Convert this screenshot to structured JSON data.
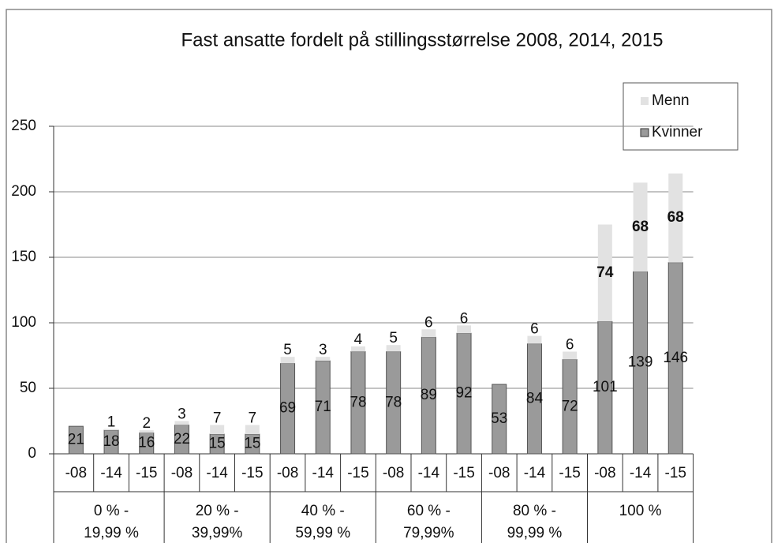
{
  "chart_data": {
    "type": "stacked_bar",
    "title": "Fast ansatte fordelt på stillingsstørrelse 2008, 2014, 2015",
    "categories": [
      "-08",
      "-14",
      "-15",
      "-08",
      "-14",
      "-15",
      "-08",
      "-14",
      "-15",
      "-08",
      "-14",
      "-15",
      "-08",
      "-14",
      "-15",
      "-08",
      "-14",
      "-15"
    ],
    "groups": [
      "0 % - 19,99 %",
      "20 % - 39,99%",
      "40 % - 59,99 %",
      "60 % - 79,99%",
      "80 % - 99,99 %",
      "100 %"
    ],
    "series": [
      {
        "name": "Kvinner",
        "color": "#9a9a9a",
        "values": [
          21,
          18,
          16,
          22,
          15,
          15,
          69,
          71,
          78,
          78,
          89,
          92,
          53,
          84,
          72,
          101,
          139,
          146
        ]
      },
      {
        "name": "Menn",
        "color": "#e2e2e2",
        "values": [
          null,
          1,
          2,
          3,
          7,
          7,
          5,
          3,
          4,
          5,
          6,
          6,
          null,
          6,
          6,
          74,
          68,
          68
        ]
      }
    ],
    "ylim": [
      0,
      250
    ],
    "yticks": [
      0,
      50,
      100,
      150,
      200,
      250
    ],
    "grid": true,
    "legend": "upper right"
  }
}
